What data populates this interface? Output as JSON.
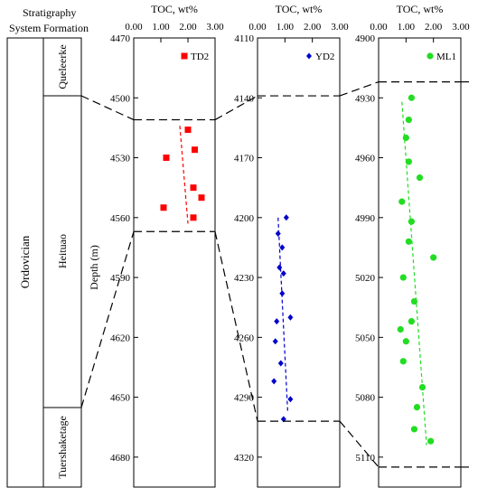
{
  "header": {
    "stratigraphy": "Stratigraphy",
    "system": "System",
    "formation": "Formation"
  },
  "strat": {
    "system_name": "Ordovician",
    "formations": [
      "Queleerke",
      "Heituao",
      "Tuershaketage"
    ]
  },
  "depth_label": "Depth (m)",
  "chart_data": [
    {
      "type": "scatter",
      "well": "TD2",
      "xlabel": "TOC, wt%",
      "ylabel": "Depth (m)",
      "xlim": [
        0,
        3
      ],
      "ylim": [
        4470,
        4695
      ],
      "xticks": [
        0.0,
        1.0,
        2.0,
        3.0
      ],
      "yticks": [
        4470,
        4500,
        4530,
        4560,
        4590,
        4620,
        4650,
        4680
      ],
      "legend": "top-right",
      "color": "#ff0000",
      "marker": "square",
      "points": [
        {
          "x": 2.0,
          "y": 4516
        },
        {
          "x": 2.25,
          "y": 4526
        },
        {
          "x": 1.2,
          "y": 4530
        },
        {
          "x": 2.2,
          "y": 4545
        },
        {
          "x": 2.5,
          "y": 4550
        },
        {
          "x": 1.1,
          "y": 4555
        },
        {
          "x": 2.2,
          "y": 4560
        }
      ],
      "trend": [
        {
          "x": 1.7,
          "y": 4514
        },
        {
          "x": 2.0,
          "y": 4563
        }
      ],
      "boundaries": [
        4511,
        4567
      ]
    },
    {
      "type": "scatter",
      "well": "YD2",
      "xlabel": "TOC, wt%",
      "ylabel": "",
      "xlim": [
        0,
        3
      ],
      "ylim": [
        4110,
        4335
      ],
      "xticks": [
        0.0,
        1.0,
        2.0,
        3.0
      ],
      "yticks": [
        4110,
        4140,
        4170,
        4200,
        4230,
        4260,
        4290,
        4320
      ],
      "legend": "top-right",
      "color": "#0000cc",
      "marker": "diamond",
      "points": [
        {
          "x": 1.05,
          "y": 4200
        },
        {
          "x": 0.75,
          "y": 4208
        },
        {
          "x": 0.9,
          "y": 4215
        },
        {
          "x": 0.8,
          "y": 4225
        },
        {
          "x": 0.95,
          "y": 4228
        },
        {
          "x": 0.9,
          "y": 4238
        },
        {
          "x": 1.2,
          "y": 4250
        },
        {
          "x": 0.7,
          "y": 4252
        },
        {
          "x": 0.65,
          "y": 4262
        },
        {
          "x": 0.85,
          "y": 4273
        },
        {
          "x": 0.6,
          "y": 4282
        },
        {
          "x": 1.2,
          "y": 4291
        },
        {
          "x": 0.95,
          "y": 4301
        }
      ],
      "trend": [
        {
          "x": 0.75,
          "y": 4200
        },
        {
          "x": 1.1,
          "y": 4297
        }
      ],
      "boundaries": [
        4139,
        4302
      ]
    },
    {
      "type": "scatter",
      "well": "ML1",
      "xlabel": "TOC, wt%",
      "ylabel": "",
      "xlim": [
        0,
        3
      ],
      "ylim": [
        4900,
        5125
      ],
      "xticks": [
        0.0,
        1.0,
        2.0,
        3.0
      ],
      "yticks": [
        4900,
        4930,
        4960,
        4990,
        5020,
        5050,
        5080,
        5110
      ],
      "legend": "top-right",
      "color": "#22dd22",
      "marker": "circle",
      "points": [
        {
          "x": 1.2,
          "y": 4930
        },
        {
          "x": 1.1,
          "y": 4941
        },
        {
          "x": 1.0,
          "y": 4950
        },
        {
          "x": 1.1,
          "y": 4962
        },
        {
          "x": 1.5,
          "y": 4970
        },
        {
          "x": 0.85,
          "y": 4982
        },
        {
          "x": 1.2,
          "y": 4992
        },
        {
          "x": 1.1,
          "y": 5002
        },
        {
          "x": 2.0,
          "y": 5010
        },
        {
          "x": 0.9,
          "y": 5020
        },
        {
          "x": 1.3,
          "y": 5032
        },
        {
          "x": 1.2,
          "y": 5042
        },
        {
          "x": 0.8,
          "y": 5046
        },
        {
          "x": 1.0,
          "y": 5052
        },
        {
          "x": 0.9,
          "y": 5062
        },
        {
          "x": 1.6,
          "y": 5075
        },
        {
          "x": 1.4,
          "y": 5085
        },
        {
          "x": 1.3,
          "y": 5096
        },
        {
          "x": 1.9,
          "y": 5102
        }
      ],
      "trend": [
        {
          "x": 0.85,
          "y": 4932
        },
        {
          "x": 1.75,
          "y": 5104
        }
      ],
      "boundaries": [
        4922,
        5115
      ]
    }
  ]
}
